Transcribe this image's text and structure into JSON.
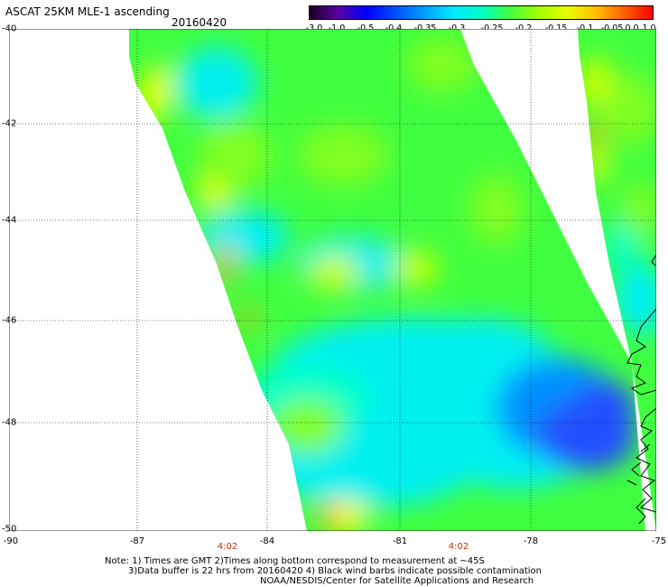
{
  "header": {
    "title": "ASCAT 25KM MLE-1 ascending",
    "date": "20160420"
  },
  "colorbar": {
    "labels": [
      "-3.0",
      "-1.0",
      "-0.5",
      "-0.4",
      "-0.35",
      "-0.3",
      "-0.25",
      "-0.2",
      "-0.15",
      "-0.1",
      "-0.05",
      "0.0",
      "1.0"
    ],
    "colors": [
      "#1a0028",
      "#5a00a0",
      "#0000ff",
      "#0050ff",
      "#00a0ff",
      "#00e8ff",
      "#00ffc8",
      "#40ff40",
      "#a0ff00",
      "#e8ff00",
      "#ffc000",
      "#ff6000",
      "#ff0000"
    ]
  },
  "map": {
    "lat_labels": [
      "-40",
      "-42",
      "-44",
      "-46",
      "-48",
      "-50"
    ],
    "lon_labels": [
      "-90",
      "-87",
      "-84",
      "-81",
      "-78",
      "-75"
    ],
    "time_labels": [
      "4:02",
      "4:02"
    ],
    "field_colors": {
      "blue": "#2050ff",
      "lightblue": "#0090ff",
      "cyan": "#00f0f0",
      "aqua": "#00ffc8",
      "green": "#40ff40",
      "lightgreen": "#80ff20",
      "yellowgreen": "#c8ff00",
      "yellow": "#ffff00",
      "orange": "#ffa000"
    }
  },
  "notes": {
    "line1": "Note: 1) Times are GMT 2)Times along bottom correspond to measurement at ~45S",
    "line2": "3)Data buffer is 22 hrs from 20160420 4) Black wind barbs indicate possible contamination",
    "line3": "NOAA/NESDIS/Center for Satellite Applications and Research"
  }
}
